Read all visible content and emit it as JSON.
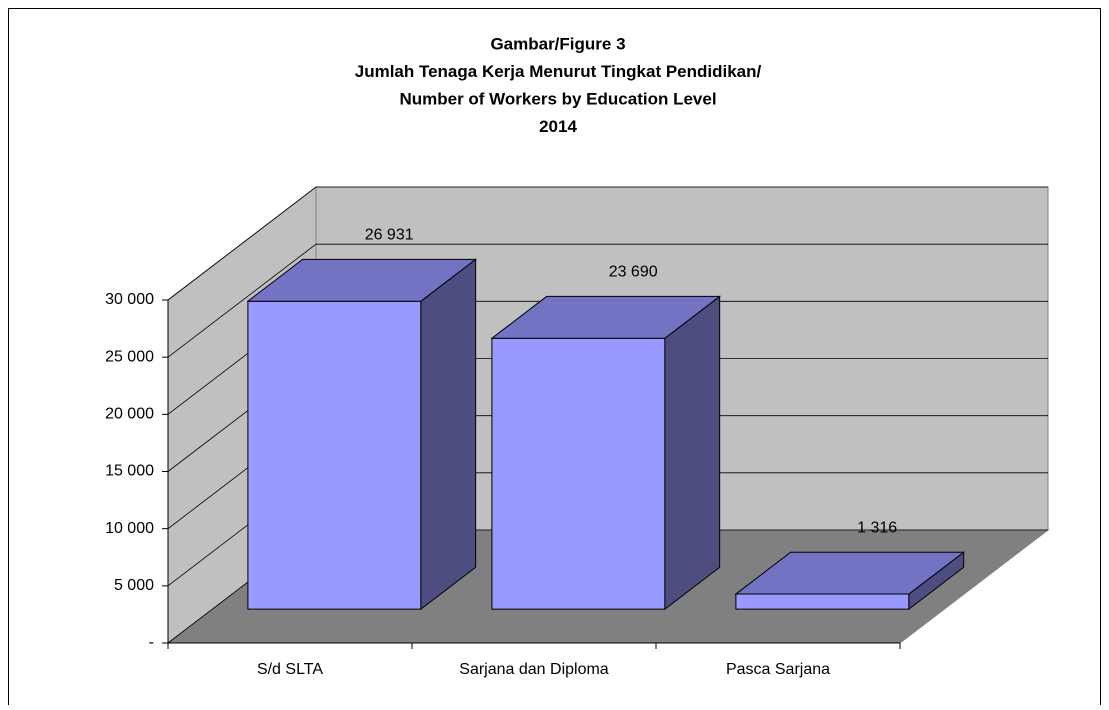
{
  "chart_data": {
    "type": "bar3d",
    "title": [
      "Gambar/Figure 3",
      "Jumlah Tenaga Kerja Menurut Tingkat Pendidikan/",
      "Number of Workers by Education Level",
      "2014"
    ],
    "categories": [
      "S/d SLTA",
      "Sarjana dan Diploma",
      "Pasca Sarjana"
    ],
    "values": [
      26931,
      23690,
      1316
    ],
    "value_labels": [
      "26 931",
      "23 690",
      "1 316"
    ],
    "color": "#9999ff",
    "ylim": [
      0,
      30000
    ],
    "yticks": [
      {
        "value": 0,
        "label": "-"
      },
      {
        "value": 5000,
        "label": "5 000"
      },
      {
        "value": 10000,
        "label": "10 000"
      },
      {
        "value": 15000,
        "label": "15 000"
      },
      {
        "value": 20000,
        "label": "20 000"
      },
      {
        "value": 25000,
        "label": "25 000"
      },
      {
        "value": 30000,
        "label": "30 000"
      }
    ],
    "grid": true
  }
}
